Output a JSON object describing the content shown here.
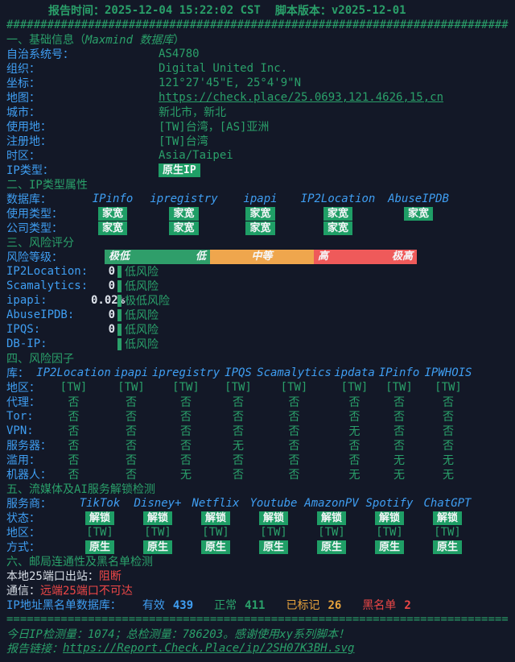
{
  "colors": {
    "background": "#131827",
    "green": "#2aa06a",
    "blue": "#3f9ef2",
    "red": "#ee4747",
    "orange": "#e6a23c",
    "badge_green": "#1f9e66",
    "bar_green": "#2f9e6a",
    "bar_orange": "#efa64d",
    "bar_red": "#ef5a5a"
  },
  "title": {
    "report_time_label": "报告时间：",
    "report_time": "2025-12-04 15:22:02 CST",
    "version_label": "脚本版本：",
    "version": "v2025-12-01"
  },
  "separators": {
    "hash": "##########################################################################",
    "equals": "=========================================================================="
  },
  "s1": {
    "head_prefix": "一、基础信息（",
    "head_italic": "Maxmind 数据库",
    "head_suffix": "）",
    "rows": [
      {
        "label": "自治系统号：",
        "value": "AS4780"
      },
      {
        "label": "组织：",
        "value": "Digital United Inc."
      },
      {
        "label": "坐标：",
        "value": "121°27'45\"E, 25°4'9\"N"
      },
      {
        "label": "地图：",
        "value": "https://check.place/25.0693,121.4626,15,cn"
      },
      {
        "label": "城市：",
        "value": "新北市，新北"
      },
      {
        "label": "使用地：",
        "value": "[TW]台湾，[AS]亚洲"
      },
      {
        "label": "注册地：",
        "value": "[TW]台湾"
      },
      {
        "label": "时区：",
        "value": "Asia/Taipei"
      }
    ],
    "ip_type_label": "IP类型：",
    "ip_type_badge": "原生IP"
  },
  "s2": {
    "title": "二、IP类型属性",
    "db_label": "数据库：",
    "cols": [
      "IPinfo",
      "ipregistry",
      "ipapi",
      "IP2Location",
      "AbuseIPDB"
    ],
    "usage_label": "使用类型：",
    "usage": [
      "家宽",
      "家宽",
      "家宽",
      "家宽",
      "家宽"
    ],
    "company_label": "公司类型：",
    "company": [
      "家宽",
      "家宽",
      "家宽",
      "家宽"
    ]
  },
  "s3": {
    "title": "三、风险评分",
    "level_label": "风险等级：",
    "bar_labels": {
      "very_low": "极低",
      "low": "低",
      "medium": "中等",
      "high": "高",
      "very_high": "极高"
    },
    "scores": [
      {
        "label": "IP2Location:",
        "score": "0",
        "risk": "低风险"
      },
      {
        "label": "Scamalytics:",
        "score": "0",
        "risk": "低风险"
      },
      {
        "label": "ipapi:",
        "score": "0.02%",
        "risk": "极低风险"
      },
      {
        "label": "AbuseIPDB:",
        "score": "0",
        "risk": "低风险"
      },
      {
        "label": "IPQS:",
        "score": "0",
        "risk": "低风险"
      },
      {
        "label": "DB-IP:",
        "score": "",
        "risk": "低风险"
      }
    ]
  },
  "s4": {
    "title": "四、风险因子",
    "lib_label": "库：",
    "cols": [
      "IP2Location",
      "ipapi",
      "ipregistry",
      "IPQS",
      "Scamalytics",
      "ipdata",
      "IPinfo",
      "IPWHOIS"
    ],
    "rows": [
      {
        "label": "地区：",
        "values": [
          "[TW]",
          "[TW]",
          "[TW]",
          "[TW]",
          "[TW]",
          "[TW]",
          "[TW]",
          "[TW]"
        ]
      },
      {
        "label": "代理：",
        "values": [
          "否",
          "否",
          "否",
          "否",
          "否",
          "否",
          "否",
          "否"
        ]
      },
      {
        "label": "Tor:",
        "values": [
          "否",
          "否",
          "否",
          "否",
          "否",
          "否",
          "否",
          "否"
        ]
      },
      {
        "label": "VPN:",
        "values": [
          "否",
          "否",
          "否",
          "否",
          "否",
          "无",
          "否",
          "否"
        ]
      },
      {
        "label": "服务器：",
        "values": [
          "否",
          "否",
          "否",
          "无",
          "否",
          "否",
          "否",
          "否"
        ]
      },
      {
        "label": "滥用：",
        "values": [
          "否",
          "否",
          "否",
          "否",
          "否",
          "否",
          "无",
          "无"
        ]
      },
      {
        "label": "机器人：",
        "values": [
          "否",
          "否",
          "无",
          "否",
          "否",
          "无",
          "无",
          "无"
        ]
      }
    ]
  },
  "s5": {
    "title": "五、流媒体及AI服务解锁检测",
    "provider_label": "服务商：",
    "cols": [
      "TikTok",
      "Disney+",
      "Netflix",
      "Youtube",
      "AmazonPV",
      "Spotify",
      "ChatGPT"
    ],
    "status_label": "状态：",
    "status": [
      "解锁",
      "解锁",
      "解锁",
      "解锁",
      "解锁",
      "解锁",
      "解锁"
    ],
    "region_label": "地区：",
    "regions": [
      "[TW]",
      "[TW]",
      "[TW]",
      "[TW]",
      "[TW]",
      "[TW]",
      "[TW]"
    ],
    "method_label": "方式：",
    "methods": [
      "原生",
      "原生",
      "原生",
      "原生",
      "原生",
      "原生",
      "原生"
    ]
  },
  "s6": {
    "title": "六、邮局连通性及黑名单检测",
    "port_label": "本地25端口出站：",
    "port_value": "阻断",
    "comm_label": "通信：",
    "comm_value": "远端25端口不可达",
    "blacklist_label": "IP地址黑名单数据库：",
    "stats": [
      {
        "name": "有效",
        "value": "439"
      },
      {
        "name": "正常",
        "value": "411"
      },
      {
        "name": "已标记",
        "value": "26"
      },
      {
        "name": "黑名单",
        "value": "2"
      }
    ]
  },
  "footer": {
    "line1": "今日IP检测量：1074；总检测量：786203。感谢使用xy系列脚本！",
    "link_label": "报告链接：",
    "link_url": "https://Report.Check.Place/ip/2SH07K3BH.svg"
  }
}
